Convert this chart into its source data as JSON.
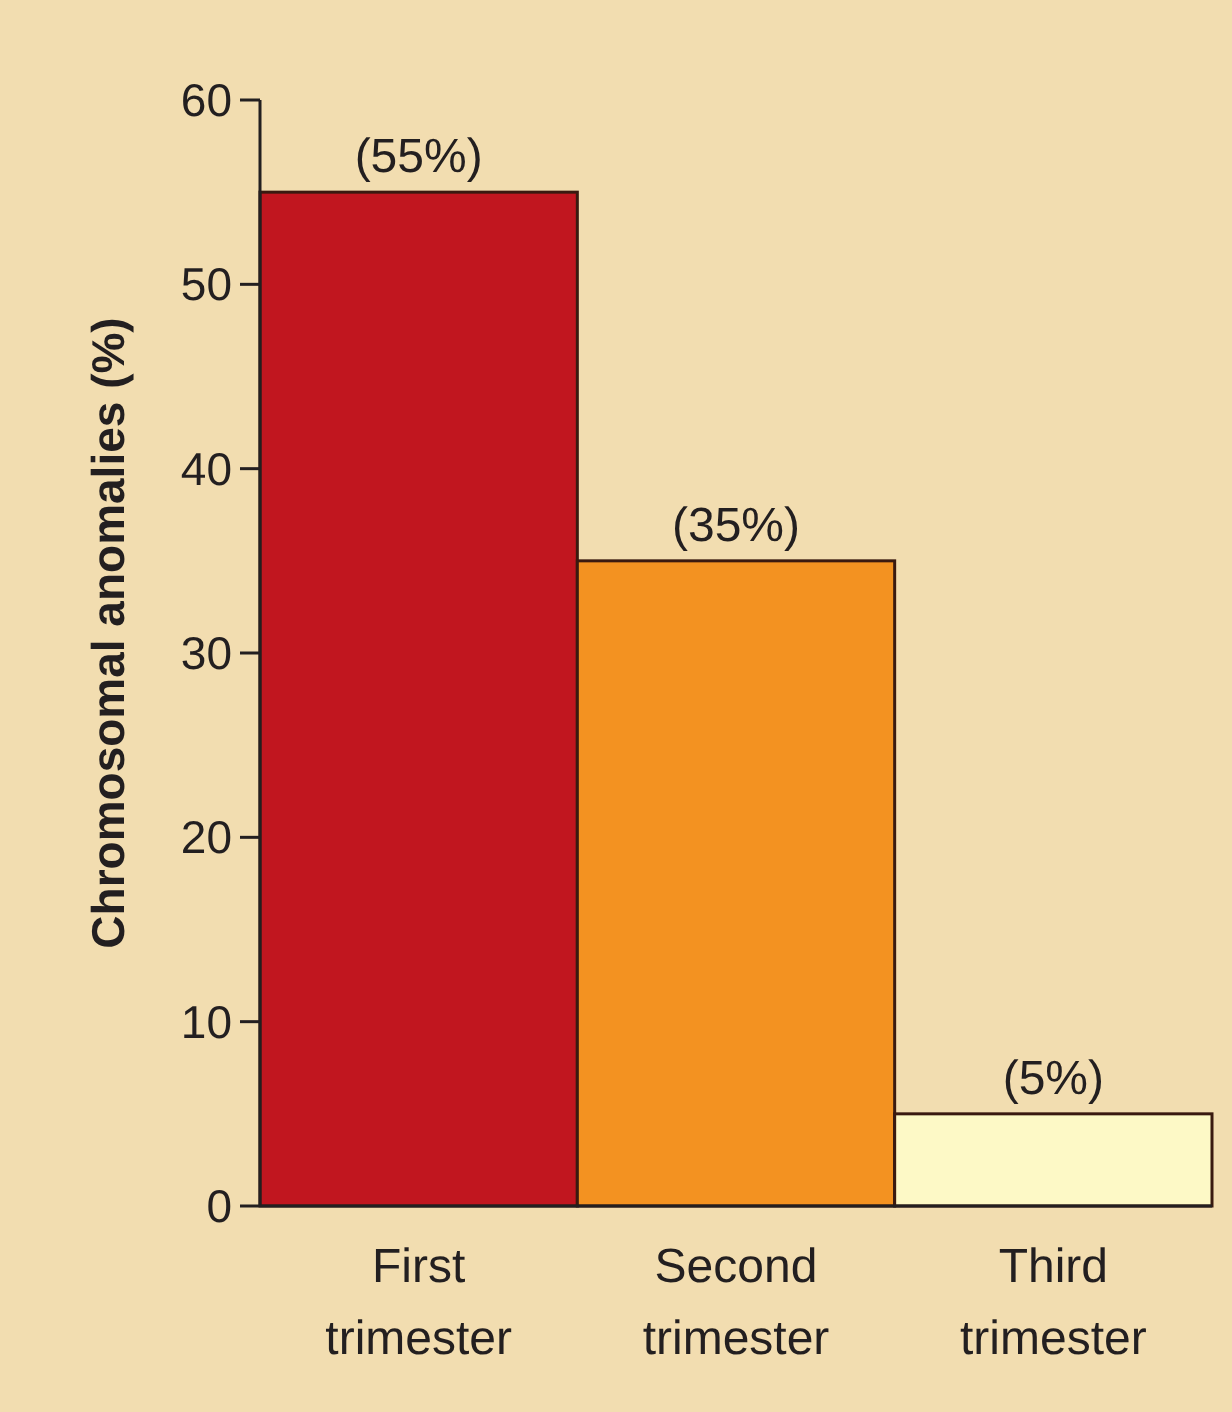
{
  "chart_data": {
    "type": "bar",
    "ylabel": "Chromosomal anomalies (%)",
    "categories": [
      "First trimester",
      "Second trimester",
      "Third trimester"
    ],
    "values": [
      55,
      35,
      5
    ],
    "colors": [
      "#c1161f",
      "#f39221",
      "#fdf9c6"
    ],
    "value_labels": [
      "(55%)",
      "(35%)",
      "(5%)"
    ],
    "ylim": [
      0,
      60
    ],
    "yticks": [
      0,
      10,
      20,
      30,
      40,
      50,
      60
    ],
    "grid": false,
    "legend": false
  }
}
